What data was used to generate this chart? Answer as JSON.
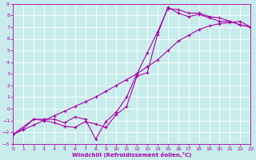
{
  "xlabel": "Windchill (Refroidissement éolien,°C)",
  "bg_color": "#c8ecec",
  "line_color": "#aa00aa",
  "grid_color": "#ffffff",
  "xlim": [
    0,
    23
  ],
  "ylim": [
    -3,
    9
  ],
  "xticks": [
    0,
    1,
    2,
    3,
    4,
    5,
    6,
    7,
    8,
    9,
    10,
    11,
    12,
    13,
    14,
    15,
    16,
    17,
    18,
    19,
    20,
    21,
    22,
    23
  ],
  "yticks": [
    -3,
    -2,
    -1,
    0,
    1,
    2,
    3,
    4,
    5,
    6,
    7,
    8,
    9
  ],
  "line1_x": [
    0,
    1,
    2,
    3,
    4,
    5,
    6,
    7,
    8,
    9,
    10,
    11,
    12,
    13,
    14,
    15,
    16,
    17,
    18,
    19,
    20,
    21,
    22,
    23
  ],
  "line1_y": [
    -2.2,
    -1.7,
    -0.9,
    -0.9,
    -0.9,
    -1.2,
    -0.7,
    -0.9,
    -2.6,
    -1.1,
    -0.3,
    1.0,
    3.0,
    4.8,
    6.6,
    8.6,
    8.5,
    8.2,
    8.2,
    7.9,
    7.8,
    7.5,
    7.2,
    7.0
  ],
  "line2_x": [
    0,
    2,
    3,
    4,
    5,
    6,
    7,
    8,
    9,
    10,
    11,
    12,
    13,
    14,
    15,
    16,
    17,
    18,
    19,
    20,
    21,
    22,
    23
  ],
  "line2_y": [
    -2.2,
    -0.9,
    -1.0,
    -1.2,
    -1.5,
    -1.6,
    -1.1,
    -1.3,
    -1.6,
    -0.5,
    0.2,
    2.8,
    3.1,
    6.4,
    8.7,
    8.2,
    7.9,
    8.1,
    7.8,
    7.5,
    7.5,
    7.2,
    7.0
  ],
  "line3_x": [
    0,
    1,
    2,
    3,
    4,
    5,
    6,
    7,
    8,
    9,
    10,
    11,
    12,
    13,
    14,
    15,
    16,
    17,
    18,
    19,
    20,
    21,
    22,
    23
  ],
  "line3_y": [
    -2.2,
    -1.8,
    -1.4,
    -1.0,
    -0.6,
    -0.2,
    0.2,
    0.6,
    1.0,
    1.5,
    2.0,
    2.5,
    3.0,
    3.6,
    4.2,
    5.0,
    5.8,
    6.3,
    6.8,
    7.1,
    7.3,
    7.4,
    7.5,
    7.0
  ]
}
